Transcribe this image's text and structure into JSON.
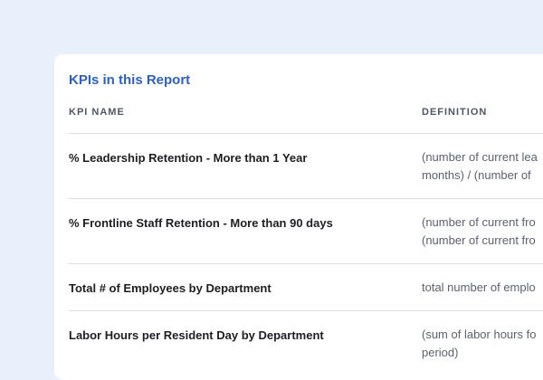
{
  "report": {
    "title": "KPIs in this Report",
    "columns": {
      "name": "KPI NAME",
      "definition": "DEFINITION"
    },
    "rows": [
      {
        "name": "% Leadership Retention - More than 1 Year",
        "definition_line1": "(number of current lea",
        "definition_line2": "months) / (number of"
      },
      {
        "name": "% Frontline Staff Retention - More than 90 days",
        "definition_line1": "(number of current fro",
        "definition_line2": "(number of current fro"
      },
      {
        "name": "Total # of Employees by Department",
        "definition_line1": "total number of emplo",
        "definition_line2": ""
      },
      {
        "name": "Labor Hours per Resident Day by Department",
        "definition_line1": "(sum of labor hours fo",
        "definition_line2": "period)"
      }
    ]
  }
}
